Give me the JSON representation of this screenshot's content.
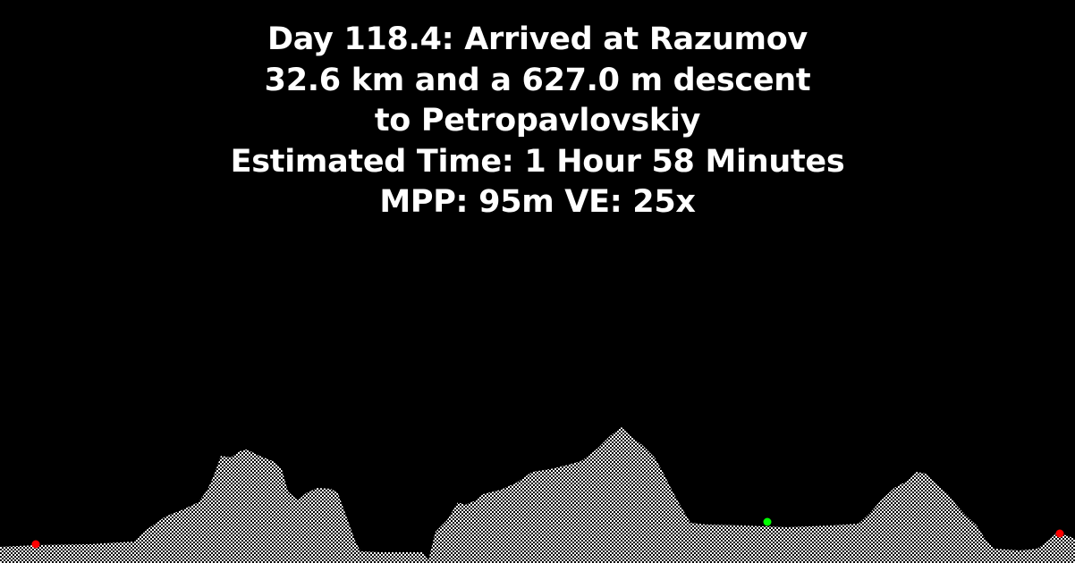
{
  "header": {
    "lines": [
      "Day 118.4: Arrived at Razumov",
      "32.6 km and a 627.0 m descent",
      "to Petropavlovskiy",
      "Estimated Time: 1 Hour 58 Minutes",
      "MPP: 95m VE: 25x"
    ]
  },
  "colors": {
    "background": "#000000",
    "text": "#ffffff",
    "terrain": "#ffffff",
    "start_marker": "#ff0000",
    "current_marker": "#00ff00",
    "end_marker": "#ff0000"
  },
  "markers": [
    {
      "name": "start",
      "color": "#ff0000"
    },
    {
      "name": "current",
      "color": "#00ff00"
    },
    {
      "name": "end",
      "color": "#ff0000"
    }
  ]
}
